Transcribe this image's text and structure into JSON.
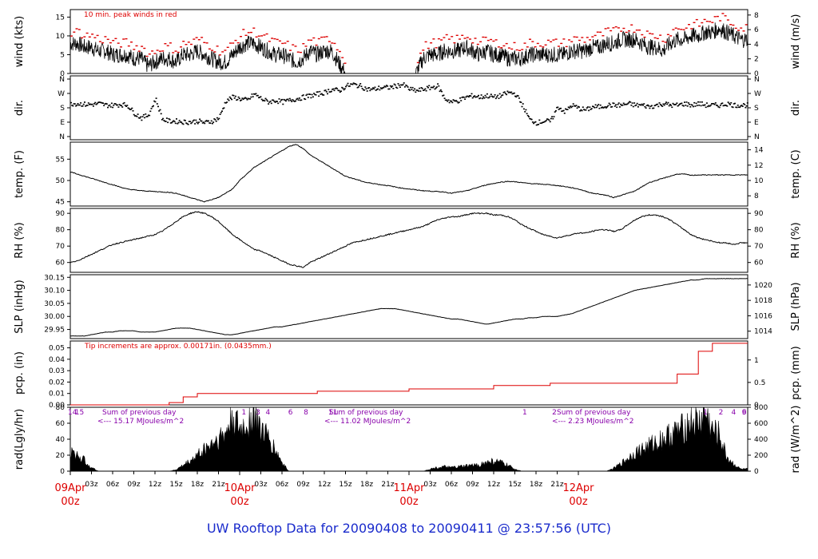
{
  "footer": "UW Rooftop Data for 20090408  to  20090411 @ 23:57:56  (UTC)",
  "colors": {
    "trace": "#000000",
    "red": "#dd0000",
    "purple": "#8800aa",
    "footer": "#1a2bcc"
  },
  "x_axis": {
    "hour_ticks": [
      "03z",
      "06z",
      "09z",
      "12z",
      "15z",
      "18z",
      "21z",
      "03z",
      "06z",
      "09z",
      "12z",
      "15z",
      "18z",
      "21z",
      "03z",
      "06z",
      "09z",
      "12z",
      "15z",
      "18z",
      "21z"
    ],
    "day_ticks": [
      {
        "date": "09Apr",
        "time": "00z"
      },
      {
        "date": "10Apr",
        "time": "00z"
      },
      {
        "date": "11Apr",
        "time": "00z"
      },
      {
        "date": "12Apr",
        "time": "00z"
      }
    ]
  },
  "chart_data": [
    {
      "type": "line",
      "ylabel": "wind (kts)",
      "ylabel_right": "wind (m/s)",
      "left_ticks": [
        "0",
        "5",
        "10",
        "15"
      ],
      "right_ticks": [
        "0",
        "2",
        "4",
        "6",
        "8"
      ],
      "ylim": [
        0,
        17
      ],
      "annotation": "10 min. peak winds in red",
      "series": [
        {
          "values_hourly": [
            8,
            8,
            7,
            7,
            6,
            6,
            5,
            5,
            5,
            4,
            4,
            2,
            3,
            4,
            4,
            3,
            5,
            5,
            6,
            5,
            4,
            3,
            3,
            5,
            7,
            8,
            8,
            7,
            6,
            5,
            5,
            4,
            3,
            4,
            6,
            5,
            6,
            6,
            3,
            0,
            0,
            0,
            0,
            0,
            0,
            0,
            0,
            0,
            0,
            0,
            4,
            5,
            5,
            6,
            6,
            6,
            7,
            6,
            5,
            6,
            5,
            5,
            4,
            4,
            4,
            5,
            5,
            5,
            5,
            5,
            5,
            6,
            6,
            6,
            7,
            7,
            8,
            8,
            9,
            9,
            9,
            8,
            7,
            7,
            6,
            8,
            9,
            9,
            10,
            10,
            11,
            11,
            12,
            11,
            10,
            9
          ]
        }
      ]
    },
    {
      "type": "scatter",
      "ylabel": "dir.",
      "ylabel_right": "dir.",
      "left_ticks": [
        "N",
        "E",
        "S",
        "W",
        "N"
      ],
      "right_ticks": [
        "N",
        "E",
        "S",
        "W",
        "N"
      ],
      "series": [
        {
          "values_hourly": [
            210,
            210,
            205,
            205,
            210,
            200,
            200,
            205,
            200,
            150,
            120,
            140,
            240,
            110,
            100,
            100,
            95,
            95,
            100,
            90,
            100,
            120,
            230,
            250,
            240,
            230,
            270,
            240,
            220,
            230,
            220,
            230,
            240,
            250,
            260,
            270,
            280,
            300,
            290,
            320,
            330,
            320,
            300,
            300,
            310,
            310,
            320,
            330,
            300,
            290,
            300,
            310,
            320,
            240,
            220,
            230,
            250,
            260,
            250,
            260,
            250,
            260,
            280,
            270,
            200,
            110,
            90,
            100,
            100,
            190,
            160,
            200,
            180,
            170,
            190,
            190,
            200,
            200,
            200,
            210,
            200,
            200,
            190,
            200,
            210,
            200,
            200,
            210,
            200,
            210,
            200,
            200,
            200,
            210,
            200,
            200
          ]
        }
      ]
    },
    {
      "type": "line",
      "ylabel": "temp. (F)",
      "ylabel_right": "temp. (C)",
      "left_ticks": [
        "45",
        "50",
        "55"
      ],
      "right_ticks": [
        "8",
        "10",
        "12",
        "14"
      ],
      "ylim": [
        44,
        59
      ],
      "series": [
        {
          "values_hourly": [
            52,
            51.5,
            51,
            50.5,
            50,
            49.5,
            49,
            48.5,
            48,
            47.8,
            47.6,
            47.5,
            47.4,
            47.3,
            47.2,
            47,
            46.5,
            46,
            45.5,
            45,
            45.5,
            46,
            47,
            48,
            50,
            51.5,
            53,
            54,
            55,
            56,
            57,
            58,
            58.5,
            57.5,
            56,
            55,
            54,
            53,
            52,
            51,
            50.5,
            50,
            49.5,
            49.3,
            49,
            48.8,
            48.5,
            48.2,
            48,
            47.8,
            47.6,
            47.5,
            47.4,
            47.3,
            47,
            47.3,
            47.5,
            48,
            48.5,
            49,
            49.3,
            49.6,
            49.8,
            49.7,
            49.5,
            49.3,
            49.2,
            49.1,
            49,
            48.8,
            48.6,
            48.3,
            48,
            47.5,
            47,
            46.8,
            46.5,
            46,
            46.5,
            47,
            47.5,
            48.5,
            49.5,
            50,
            50.5,
            51,
            51.5,
            51.5,
            51.2,
            51.3
          ]
        }
      ]
    },
    {
      "type": "line",
      "ylabel": "RH (%)",
      "ylabel_right": "RH (%)",
      "left_ticks": [
        "60",
        "70",
        "80",
        "90"
      ],
      "right_ticks": [
        "60",
        "70",
        "80",
        "90"
      ],
      "ylim": [
        54,
        93
      ],
      "series": [
        {
          "values_hourly": [
            60,
            61,
            63,
            65,
            67,
            69,
            71,
            72,
            73,
            74,
            75,
            76,
            77,
            79,
            82,
            85,
            88,
            90,
            91,
            90,
            88,
            85,
            81,
            77,
            74,
            71,
            68,
            67,
            65,
            63,
            61,
            59,
            58,
            57,
            60,
            62,
            64,
            66,
            68,
            70,
            72,
            73,
            74,
            75,
            76,
            77,
            78,
            79,
            80,
            81,
            82,
            84,
            86,
            87,
            88,
            88,
            89,
            90,
            90,
            90,
            89,
            89,
            88,
            86,
            83,
            81,
            79,
            77,
            76,
            75,
            76,
            77,
            78,
            78,
            79,
            80,
            80,
            79,
            80,
            83,
            86,
            88,
            89,
            89,
            88,
            86,
            83,
            80,
            77,
            75,
            74,
            73,
            72,
            72,
            71,
            72
          ]
        }
      ]
    },
    {
      "type": "line",
      "ylabel": "SLP (inHg)",
      "ylabel_right": "SLP (hPa)",
      "left_ticks": [
        "29.95",
        "30.00",
        "30.05",
        "30.10",
        "30.15"
      ],
      "right_ticks": [
        "1014",
        "1016",
        "1018",
        "1020"
      ],
      "ylim": [
        29.915,
        30.16
      ],
      "series": [
        {
          "values_hourly": [
            29.925,
            29.925,
            29.925,
            29.93,
            29.935,
            29.94,
            29.94,
            29.945,
            29.945,
            29.945,
            29.94,
            29.94,
            29.94,
            29.945,
            29.95,
            29.955,
            29.955,
            29.955,
            29.95,
            29.945,
            29.94,
            29.935,
            29.93,
            29.93,
            29.935,
            29.94,
            29.945,
            29.95,
            29.955,
            29.96,
            29.96,
            29.965,
            29.97,
            29.975,
            29.98,
            29.985,
            29.99,
            29.995,
            30,
            30.005,
            30.01,
            30.015,
            30.02,
            30.025,
            30.03,
            30.03,
            30.03,
            30.025,
            30.02,
            30.015,
            30.01,
            30.005,
            30,
            29.995,
            29.99,
            29.99,
            29.985,
            29.98,
            29.975,
            29.97,
            29.975,
            29.98,
            29.985,
            29.99,
            29.99,
            29.995,
            29.995,
            30,
            30,
            30,
            30.005,
            30.01,
            30.02,
            30.03,
            30.04,
            30.05,
            30.06,
            30.07,
            30.08,
            30.09,
            30.1,
            30.105,
            30.11,
            30.115,
            30.12,
            30.125,
            30.13,
            30.135,
            30.14,
            30.14,
            30.145,
            30.145
          ]
        }
      ]
    },
    {
      "type": "line",
      "ylabel": "pcp. (in)",
      "ylabel_right": "pcp. (mm)",
      "left_ticks": [
        "0.00",
        "0.01",
        "0.02",
        "0.03",
        "0.04",
        "0.05"
      ],
      "right_ticks": [
        "0",
        "0.5",
        "1"
      ],
      "ylim": [
        0,
        0.056
      ],
      "annotation": "Tip increments are approx. 0.00171in. (0.0435mm.)",
      "steps": [
        {
          "hour": 0,
          "value": 0
        },
        {
          "hour": 14,
          "value": 0.002
        },
        {
          "hour": 16,
          "value": 0.007
        },
        {
          "hour": 18,
          "value": 0.01
        },
        {
          "hour": 35,
          "value": 0.012
        },
        {
          "hour": 48,
          "value": 0.014
        },
        {
          "hour": 60,
          "value": 0.017
        },
        {
          "hour": 68,
          "value": 0.019
        },
        {
          "hour": 86,
          "value": 0.027
        },
        {
          "hour": 89,
          "value": 0.047
        },
        {
          "hour": 91,
          "value": 0.054
        },
        {
          "hour": 96,
          "value": 0.054
        }
      ]
    },
    {
      "type": "area",
      "ylabel": "rad(Lgly/hr)",
      "ylabel_right": "rad (W/m^2)",
      "left_ticks": [
        "0",
        "20",
        "40",
        "60",
        "80"
      ],
      "right_ticks": [
        "0",
        "200",
        "400",
        "600",
        "800"
      ],
      "ylim": [
        0,
        80
      ],
      "annotations": [
        {
          "label": "Sum of previous day",
          "total": "<--- 15.17 MJoules/m^2"
        },
        {
          "label": "Sum of previous day",
          "total": "<--- 11.02 MJoules/m^2"
        },
        {
          "label": "Sum of previous day",
          "total": "<--- 2.23 MJoules/m^2"
        }
      ],
      "markers": [
        "14",
        "15",
        "1",
        "3",
        "4",
        "6",
        "8",
        "11",
        "1",
        "2",
        "1",
        "2",
        "4",
        "6",
        "9"
      ],
      "series": [
        {
          "values_hourly": [
            25,
            22,
            15,
            5,
            0,
            0,
            0,
            0,
            0,
            0,
            0,
            0,
            0,
            0,
            0,
            2,
            8,
            14,
            22,
            30,
            38,
            45,
            50,
            75,
            55,
            65,
            78,
            60,
            45,
            30,
            12,
            0,
            0,
            0,
            0,
            0,
            0,
            0,
            0,
            0,
            0,
            0,
            0,
            0,
            0,
            0,
            0,
            0,
            0,
            0,
            0,
            3,
            5,
            6,
            5,
            6,
            7,
            8,
            9,
            12,
            14,
            12,
            8,
            3,
            0,
            0,
            0,
            0,
            0,
            0,
            0,
            0,
            0,
            0,
            0,
            0,
            0,
            4,
            10,
            18,
            25,
            30,
            35,
            40,
            45,
            50,
            55,
            60,
            70,
            65,
            80,
            55,
            50,
            20,
            10,
            3
          ]
        }
      ]
    }
  ]
}
